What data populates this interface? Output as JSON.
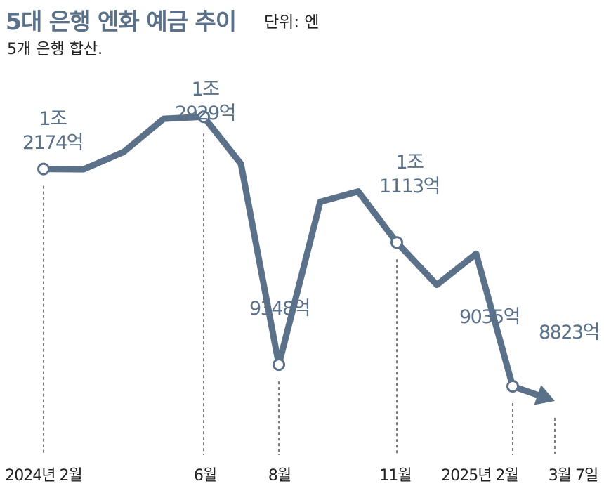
{
  "header": {
    "title": "5대 은행 엔화 예금 추이",
    "unit": "단위: 엔",
    "subtitle": "5개 은행 합산."
  },
  "chart_data": {
    "type": "line",
    "title": "5대 은행 엔화 예금 추이",
    "subtitle": "5개 은행 합산.",
    "unit": "엔",
    "ylim": [
      8000,
      13500
    ],
    "grid": false,
    "legend": "none",
    "line_color": "#5b7189",
    "series": [
      {
        "values": [
          12174,
          12170,
          12420,
          12900,
          12929,
          12250,
          9348,
          11700,
          11850,
          11113,
          10500,
          10950,
          9035,
          8823
        ],
        "x_index": [
          0,
          1,
          2,
          3,
          4,
          5,
          6,
          7,
          8,
          9,
          10,
          11,
          12,
          13
        ]
      }
    ],
    "x_ticks": [
      {
        "index": 0,
        "label": "2024년 2월"
      },
      {
        "index": 4,
        "label": "6월"
      },
      {
        "index": 6,
        "label": "8월"
      },
      {
        "index": 9,
        "label": "11월"
      },
      {
        "index": 12,
        "label": "2025년 2월"
      },
      {
        "index": 13,
        "label": "3월 7일"
      }
    ],
    "annotations": [
      {
        "index": 0,
        "lines": [
          "1조",
          "2174억"
        ],
        "marker": true
      },
      {
        "index": 4,
        "lines": [
          "1조",
          "2929억"
        ],
        "marker": true
      },
      {
        "index": 6,
        "lines": [
          "9348억"
        ],
        "marker": true
      },
      {
        "index": 9,
        "lines": [
          "1조",
          "1113억"
        ],
        "marker": true
      },
      {
        "index": 12,
        "lines": [
          "9035억"
        ],
        "marker": true
      },
      {
        "index": 13,
        "lines": [
          "8823억"
        ],
        "marker": false
      }
    ]
  }
}
